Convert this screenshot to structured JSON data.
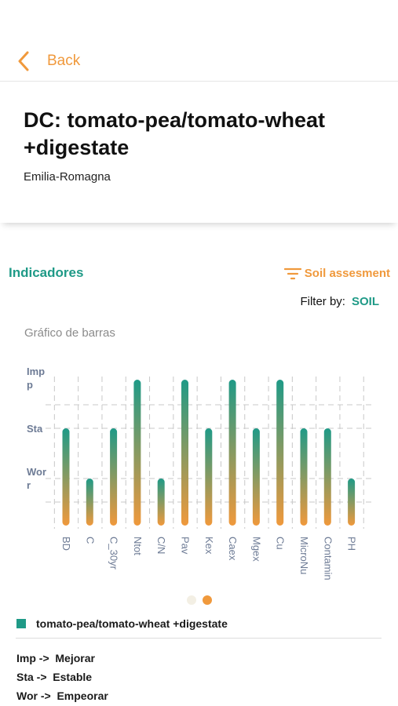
{
  "header": {
    "back_label": "Back",
    "back_icon": "chevron-left-icon"
  },
  "info": {
    "title": "DC: tomato-pea/tomato-wheat +digestate",
    "region": "Emilia-Romagna"
  },
  "section": {
    "title": "Indicadores",
    "filter_label": "Soil assesment",
    "filter_icon": "filter-lines-icon",
    "filter_by_label": "Filter by:",
    "filter_by_value": "SOIL"
  },
  "chart_subtitle": "Gráfico de barras",
  "colors": {
    "teal": "#1f9a87",
    "orange": "#f0993c",
    "axis_text": "#6d7b95"
  },
  "chart_data": {
    "type": "bar",
    "title": "",
    "y_levels": [
      "Wor",
      "Sta",
      "Imp"
    ],
    "y_tick_labels": [
      "Imp\np",
      "Sta",
      "Wor\nr"
    ],
    "categories": [
      "BD",
      "C",
      "C_30yr",
      "Ntot",
      "C/N",
      "Pav",
      "Kex",
      "Caex",
      "Mgex",
      "Cu",
      "MicroNu",
      "Contamin",
      "PH"
    ],
    "series": [
      {
        "name": "tomato-pea/tomato-wheat +digestate",
        "values": [
          "Sta",
          "Wor",
          "Sta",
          "Imp",
          "Wor",
          "Imp",
          "Sta",
          "Imp",
          "Sta",
          "Imp",
          "Sta",
          "Sta",
          "Wor"
        ]
      }
    ],
    "grid": true,
    "legend_position": "bottom"
  },
  "pagination": {
    "pages": 2,
    "active": 2
  },
  "legend": {
    "series_label": "tomato-pea/tomato-wheat +digestate"
  },
  "key": [
    "Imp ->  Mejorar",
    "Sta ->  Estable",
    "Wor ->  Empeorar"
  ]
}
